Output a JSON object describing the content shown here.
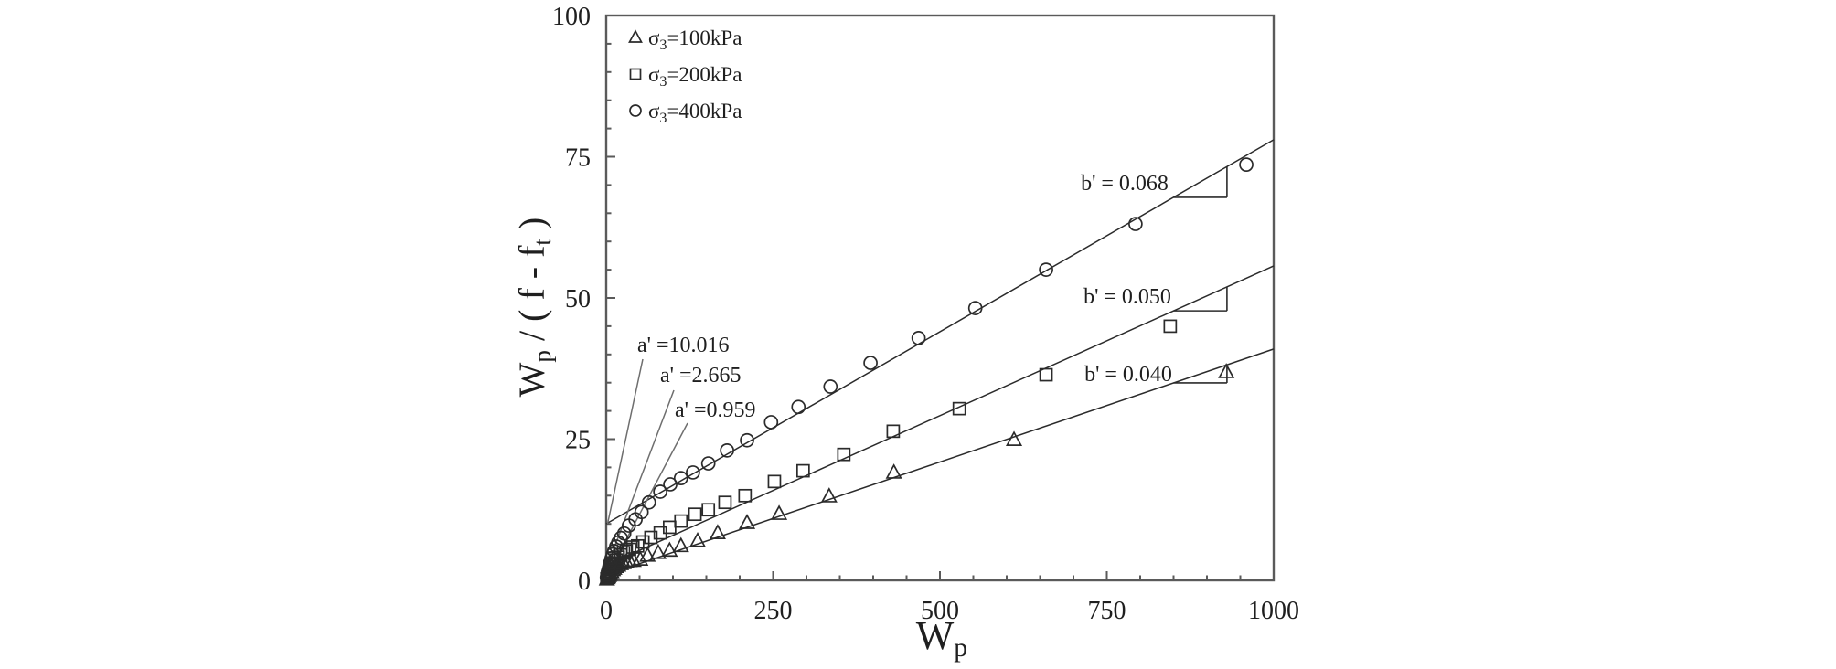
{
  "figure": {
    "background": "#ffffff",
    "ink_color": "#2b2b2b",
    "axis_color": "#5a5a5a",
    "leader_color": "#6e6e6e"
  },
  "chart_data": {
    "type": "scatter",
    "title": "",
    "xlabel": "Wp",
    "xlabel_parts": [
      {
        "t": "W"
      },
      {
        "t": "p",
        "sub": true
      }
    ],
    "ylabel": "Wp / ( f - ft )",
    "ylabel_parts": [
      {
        "t": "W"
      },
      {
        "t": "p",
        "sub": true
      },
      {
        "t": " / ( f - f"
      },
      {
        "t": "t",
        "sub": true
      },
      {
        "t": " )"
      }
    ],
    "xlim": [
      0,
      1000
    ],
    "ylim": [
      0,
      100
    ],
    "x_major_ticks": [
      0,
      250,
      500,
      750,
      1000
    ],
    "x_tick_labels": [
      "0",
      "250",
      "500",
      "750",
      "1000"
    ],
    "x_minor_step": 50,
    "y_major_ticks": [
      0,
      25,
      50,
      75,
      100
    ],
    "y_tick_labels": [
      "0",
      "25",
      "50",
      "75",
      "100"
    ],
    "y_minor_step": 5,
    "grid": false,
    "legend_position": "top-left-inside",
    "series": [
      {
        "name": "σ3=100kPa",
        "label_parts": [
          {
            "t": "σ"
          },
          {
            "t": "3",
            "sub": true
          },
          {
            "t": "=100kPa"
          }
        ],
        "marker": "triangle",
        "fit_intercept_a": 0.959,
        "fit_slope_b": 0.04,
        "points": [
          [
            1,
            0.2
          ],
          [
            2,
            0.45
          ],
          [
            3,
            0.6
          ],
          [
            4,
            0.8
          ],
          [
            5,
            1
          ],
          [
            6,
            1.2
          ],
          [
            8,
            1.5
          ],
          [
            10,
            1.85
          ],
          [
            12,
            2.1
          ],
          [
            15,
            2.4
          ],
          [
            18,
            2.65
          ],
          [
            22,
            2.9
          ],
          [
            26,
            3.1
          ],
          [
            30,
            3.3
          ],
          [
            35,
            3.45
          ],
          [
            41,
            3.5
          ],
          [
            51,
            3.7
          ],
          [
            62,
            4.4
          ],
          [
            78,
            4.9
          ],
          [
            95,
            5.3
          ],
          [
            112,
            6.1
          ],
          [
            137,
            7.0
          ],
          [
            167,
            8.4
          ],
          [
            211,
            10.2
          ],
          [
            259,
            11.8
          ],
          [
            334,
            14.9
          ],
          [
            431,
            19.1
          ],
          [
            611,
            24.9
          ],
          [
            929,
            36.9
          ]
        ]
      },
      {
        "name": "σ3=200kPa",
        "label_parts": [
          {
            "t": "σ"
          },
          {
            "t": "3",
            "sub": true
          },
          {
            "t": "=200kPa"
          }
        ],
        "marker": "square",
        "fit_intercept_a": 2.665,
        "fit_slope_b": 0.05,
        "points": [
          [
            1,
            0.3
          ],
          [
            2,
            0.65
          ],
          [
            3,
            1
          ],
          [
            4,
            1.3
          ],
          [
            5,
            1.6
          ],
          [
            6,
            1.9
          ],
          [
            8,
            2.4
          ],
          [
            10,
            2.8
          ],
          [
            12,
            3.1
          ],
          [
            15,
            3.6
          ],
          [
            18,
            4.1
          ],
          [
            22,
            4.5
          ],
          [
            26,
            4.9
          ],
          [
            30,
            5.2
          ],
          [
            35,
            5.5
          ],
          [
            40,
            5.9
          ],
          [
            47,
            6.1
          ],
          [
            55,
            6.8
          ],
          [
            67,
            7.6
          ],
          [
            81,
            8.4
          ],
          [
            95,
            9.4
          ],
          [
            112,
            10.5
          ],
          [
            133,
            11.7
          ],
          [
            153,
            12.5
          ],
          [
            178,
            13.8
          ],
          [
            208,
            15.0
          ],
          [
            252,
            17.5
          ],
          [
            295,
            19.4
          ],
          [
            356,
            22.3
          ],
          [
            430,
            26.4
          ],
          [
            529,
            30.4
          ],
          [
            659,
            36.4
          ],
          [
            845,
            45.0
          ]
        ]
      },
      {
        "name": "σ3=400kPa",
        "label_parts": [
          {
            "t": "σ"
          },
          {
            "t": "3",
            "sub": true
          },
          {
            "t": "=400kPa"
          }
        ],
        "marker": "circle",
        "fit_intercept_a": 10.016,
        "fit_slope_b": 0.068,
        "points": [
          [
            1,
            0.5
          ],
          [
            2,
            1.0
          ],
          [
            3,
            1.6
          ],
          [
            4,
            2.1
          ],
          [
            5,
            2.6
          ],
          [
            6,
            3.1
          ],
          [
            8,
            3.9
          ],
          [
            10,
            4.6
          ],
          [
            12,
            5.2
          ],
          [
            15,
            6.0
          ],
          [
            18,
            6.7
          ],
          [
            22,
            7.5
          ],
          [
            27,
            8.3
          ],
          [
            34,
            9.7
          ],
          [
            44,
            10.8
          ],
          [
            53,
            12.1
          ],
          [
            64,
            13.8
          ],
          [
            81,
            15.7
          ],
          [
            96,
            17.0
          ],
          [
            112,
            18.1
          ],
          [
            130,
            19.1
          ],
          [
            153,
            20.7
          ],
          [
            181,
            23.0
          ],
          [
            211,
            24.8
          ],
          [
            247,
            28.0
          ],
          [
            288,
            30.7
          ],
          [
            336,
            34.3
          ],
          [
            396,
            38.5
          ],
          [
            468,
            42.9
          ],
          [
            553,
            48.2
          ],
          [
            659,
            55.0
          ],
          [
            793,
            63.1
          ],
          [
            959,
            73.6
          ]
        ]
      }
    ],
    "annotations": {
      "intercept_labels": [
        {
          "text": "a' =10.016",
          "series": "σ3=400kPa",
          "value": 10.016
        },
        {
          "text": "a' =2.665",
          "series": "σ3=200kPa",
          "value": 2.665
        },
        {
          "text": "a' =0.959",
          "series": "σ3=100kPa",
          "value": 0.959
        }
      ],
      "slope_labels": [
        {
          "text": "b' = 0.068",
          "series": "σ3=400kPa",
          "value": 0.068
        },
        {
          "text": "b' = 0.050",
          "series": "σ3=200kPa",
          "value": 0.05
        },
        {
          "text": "b' = 0.040",
          "series": "σ3=100kPa",
          "value": 0.04
        }
      ]
    }
  }
}
